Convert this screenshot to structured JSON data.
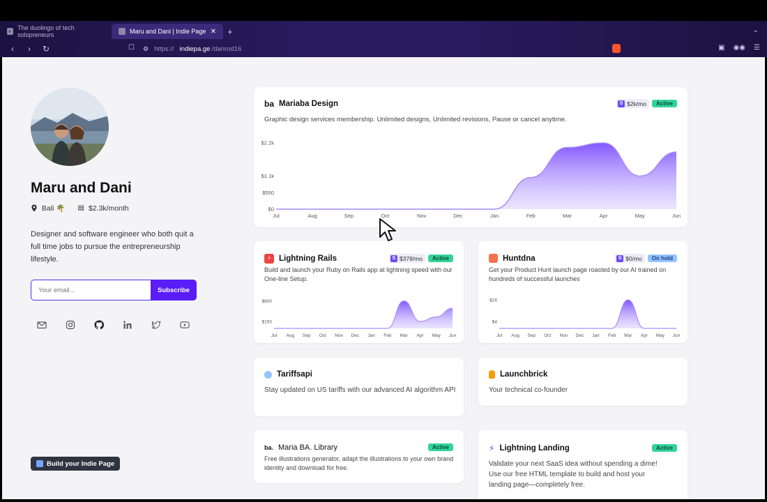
{
  "browser": {
    "tabs": [
      {
        "title": "The duolingo of tech solopreneurs",
        "active": false
      },
      {
        "title": "Maru and Dani | Indie Page",
        "active": true
      }
    ],
    "url_protocol": "https://",
    "url_host": "indiepa.ge",
    "url_path": "/danrod16"
  },
  "profile": {
    "name": "Maru and Dani",
    "location": "Bali 🌴",
    "revenue": "$2.3k/month",
    "bio": "Designer and software engineer who both quit a full time jobs to pursue the entrepreneurship lifestyle.",
    "email_placeholder": "Your email...",
    "subscribe_label": "Subscribe",
    "socials": [
      "mail-icon",
      "instagram-icon",
      "github-icon",
      "linkedin-icon",
      "twitter-icon",
      "youtube-icon"
    ],
    "build_label": "Build your Indie Page"
  },
  "projects": {
    "mariaba": {
      "logo": "ba",
      "name": "Mariaba Design",
      "revenue": "$2k/mo",
      "status": "Active",
      "description": "Graphic design services membership. Unlimited designs, Unlimited revisions, Pause or cancel anytime."
    },
    "rails": {
      "name": "Lightning Rails",
      "revenue": "$378/mo",
      "status": "Active",
      "description": "Build and launch your Ruby on Rails app at lightning speed with our One-line Setup."
    },
    "huntdna": {
      "name": "Huntdna",
      "revenue": "$0/mo",
      "status": "On hold",
      "description": "Get your Product Hunt launch page roasted by our AI trained on hundreds of successful launches"
    },
    "tariffsapi": {
      "name": "Tariffsapi",
      "description": "Stay updated on US tariffs with our advanced AI algorithm API"
    },
    "launchbrick": {
      "name": "Launchbrick",
      "description": "Your technical co-founder"
    },
    "library": {
      "logo": "ba.",
      "name": "Maria BA. Library",
      "status": "Active",
      "description": "Free illustrations generator, adapt the illustrations to your own brand identity and download for free."
    },
    "landing": {
      "name": "Lightning Landing",
      "status": "Active",
      "description": "Validate your next SaaS idea without spending a dime! Use our free HTML template to build and host your landing page—completely free."
    }
  },
  "chart_data": [
    {
      "type": "area",
      "title": "Mariaba Design",
      "categories": [
        "Jul",
        "Aug",
        "Sep",
        "Oct",
        "Nov",
        "Dec",
        "Jan",
        "Feb",
        "Mar",
        "Apr",
        "May",
        "Jun"
      ],
      "values": [
        0,
        0,
        0,
        0,
        0,
        0,
        0,
        1050,
        2050,
        2200,
        1100,
        1900
      ],
      "yticks": [
        "$0",
        "$550",
        "$1.1k",
        "$2.2k"
      ],
      "ytick_values": [
        0,
        550,
        1100,
        2200
      ],
      "ylim": [
        0,
        2200
      ]
    },
    {
      "type": "area",
      "title": "Lightning Rails",
      "categories": [
        "Jul",
        "Aug",
        "Sep",
        "Oct",
        "Nov",
        "Dec",
        "Jan",
        "Feb",
        "Mar",
        "Apr",
        "May",
        "Jun"
      ],
      "values": [
        0,
        0,
        0,
        0,
        0,
        0,
        0,
        0,
        600,
        150,
        250,
        440
      ],
      "yticks": [
        "$150",
        "$600"
      ],
      "ytick_values": [
        150,
        600
      ],
      "ylim": [
        0,
        700
      ]
    },
    {
      "type": "area",
      "title": "Huntdna",
      "categories": [
        "Jul",
        "Aug",
        "Sep",
        "Oct",
        "Nov",
        "Dec",
        "Jan",
        "Feb",
        "Mar",
        "Apr",
        "May",
        "Jun"
      ],
      "values": [
        0,
        0,
        0,
        0,
        0,
        0,
        0,
        0,
        16,
        0,
        0,
        0
      ],
      "yticks": [
        "$4",
        "$16"
      ],
      "ytick_values": [
        4,
        16
      ],
      "ylim": [
        0,
        18
      ]
    }
  ]
}
